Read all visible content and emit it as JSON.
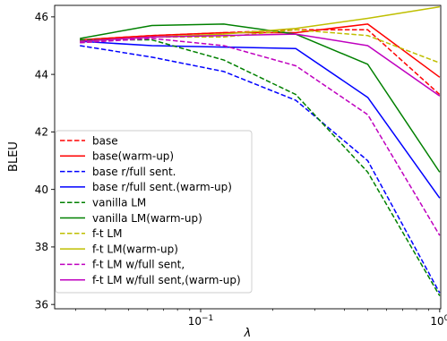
{
  "chart_data": {
    "type": "line",
    "xlabel": "λ",
    "ylabel": "BLEU",
    "xscale": "log",
    "xlim": [
      0.0245,
      1.01
    ],
    "ylim": [
      35.85,
      46.4
    ],
    "x": [
      0.03125,
      0.0625,
      0.125,
      0.25,
      0.5,
      1.0
    ],
    "x_ticks": [
      {
        "value": 0.1,
        "base": "10",
        "exp": "−1"
      },
      {
        "value": 1.0,
        "base": "10",
        "exp": "0"
      }
    ],
    "y_ticks": [
      36,
      38,
      40,
      42,
      44,
      46
    ],
    "legend_position": "lower-left",
    "grid": false,
    "series": [
      {
        "name": "base",
        "color": "#ff0000",
        "style": "dashed",
        "values": [
          45.2,
          45.35,
          45.45,
          45.55,
          45.55,
          43.3
        ]
      },
      {
        "name": "base(warm-up)",
        "color": "#ff0000",
        "style": "solid",
        "values": [
          45.2,
          45.35,
          45.45,
          45.45,
          45.75,
          43.9
        ]
      },
      {
        "name": "base r/full sent.",
        "color": "#0000ff",
        "style": "dashed",
        "values": [
          45.0,
          44.6,
          44.1,
          43.1,
          41.0,
          36.4
        ]
      },
      {
        "name": "base r/full sent.(warm-up)",
        "color": "#0000ff",
        "style": "solid",
        "values": [
          45.15,
          45.0,
          44.95,
          44.9,
          43.2,
          39.7
        ]
      },
      {
        "name": "vanilla LM",
        "color": "#008000",
        "style": "dashed",
        "values": [
          45.2,
          45.2,
          44.5,
          43.3,
          40.6,
          36.3
        ]
      },
      {
        "name": "vanilla LM(warm-up)",
        "color": "#008000",
        "style": "solid",
        "values": [
          45.25,
          45.7,
          45.75,
          45.4,
          44.35,
          40.6
        ]
      },
      {
        "name": "f-t LM",
        "color": "#bfbf00",
        "style": "dashed",
        "values": [
          45.1,
          45.3,
          45.3,
          45.55,
          45.35,
          44.4
        ]
      },
      {
        "name": "f-t LM(warm-up)",
        "color": "#bfbf00",
        "style": "solid",
        "values": [
          45.15,
          45.3,
          45.4,
          45.6,
          45.95,
          46.35
        ]
      },
      {
        "name": "f-t LM w/full sent,",
        "color": "#bf00bf",
        "style": "dashed",
        "values": [
          45.1,
          45.25,
          45.0,
          44.3,
          42.6,
          38.4
        ]
      },
      {
        "name": "f-t LM w/full sent,(warm-up)",
        "color": "#bf00bf",
        "style": "solid",
        "values": [
          45.15,
          45.3,
          45.35,
          45.4,
          45.0,
          43.25
        ]
      }
    ]
  }
}
